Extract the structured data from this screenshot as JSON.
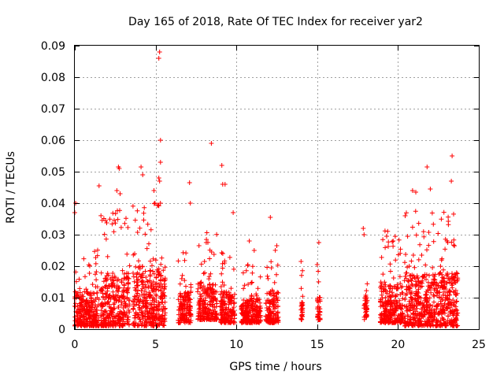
{
  "chart_data": {
    "type": "scatter",
    "title": "Day 165 of 2018, Rate Of TEC Index for receiver yar2",
    "xlabel": "GPS time / hours",
    "ylabel": "ROTI / TECUs",
    "xlim": [
      0,
      25
    ],
    "ylim": [
      0,
      0.09
    ],
    "x_ticks": [
      0,
      5,
      10,
      15,
      20,
      25
    ],
    "x_tick_labels": [
      "0",
      "5",
      "10",
      "15",
      "20",
      "25"
    ],
    "y_ticks": [
      0,
      0.01,
      0.02,
      0.03,
      0.04,
      0.05,
      0.06,
      0.07,
      0.08,
      0.09
    ],
    "y_tick_labels": [
      "0",
      "0.01",
      "0.02",
      "0.03",
      "0.04",
      "0.05",
      "0.06",
      "0.07",
      "0.08",
      "0.09"
    ],
    "grid": true,
    "marker": "plus",
    "series_color": "#ff0000",
    "dense_segments": [
      {
        "x_start": 0.0,
        "x_end": 1.5,
        "y_low": 0.001,
        "y_high": 0.012
      },
      {
        "x_start": 1.6,
        "x_end": 3.4,
        "y_low": 0.001,
        "y_high": 0.018
      },
      {
        "x_start": 3.6,
        "x_end": 5.6,
        "y_low": 0.001,
        "y_high": 0.02
      },
      {
        "x_start": 6.4,
        "x_end": 7.2,
        "y_low": 0.002,
        "y_high": 0.012
      },
      {
        "x_start": 7.6,
        "x_end": 8.8,
        "y_low": 0.003,
        "y_high": 0.015
      },
      {
        "x_start": 9.0,
        "x_end": 9.9,
        "y_low": 0.002,
        "y_high": 0.012
      },
      {
        "x_start": 10.3,
        "x_end": 11.5,
        "y_low": 0.002,
        "y_high": 0.01
      },
      {
        "x_start": 11.8,
        "x_end": 12.6,
        "y_low": 0.002,
        "y_high": 0.012
      },
      {
        "x_start": 14.0,
        "x_end": 14.1,
        "y_low": 0.003,
        "y_high": 0.01
      },
      {
        "x_start": 15.0,
        "x_end": 15.2,
        "y_low": 0.003,
        "y_high": 0.01
      },
      {
        "x_start": 17.9,
        "x_end": 18.1,
        "y_low": 0.003,
        "y_high": 0.01
      },
      {
        "x_start": 18.9,
        "x_end": 20.3,
        "y_low": 0.002,
        "y_high": 0.015
      },
      {
        "x_start": 20.4,
        "x_end": 23.7,
        "y_low": 0.001,
        "y_high": 0.018
      }
    ],
    "notable_points": [
      {
        "x": 5.25,
        "y": 0.088
      },
      {
        "x": 5.2,
        "y": 0.086
      },
      {
        "x": 5.3,
        "y": 0.06
      },
      {
        "x": 5.3,
        "y": 0.053
      },
      {
        "x": 5.2,
        "y": 0.048
      },
      {
        "x": 5.25,
        "y": 0.047
      },
      {
        "x": 8.45,
        "y": 0.059
      },
      {
        "x": 9.1,
        "y": 0.052
      },
      {
        "x": 9.15,
        "y": 0.046
      },
      {
        "x": 9.3,
        "y": 0.046
      },
      {
        "x": 7.1,
        "y": 0.0465
      },
      {
        "x": 7.15,
        "y": 0.04
      },
      {
        "x": 1.5,
        "y": 0.0455
      },
      {
        "x": 2.7,
        "y": 0.0515
      },
      {
        "x": 2.75,
        "y": 0.051
      },
      {
        "x": 2.6,
        "y": 0.044
      },
      {
        "x": 2.8,
        "y": 0.043
      },
      {
        "x": 4.1,
        "y": 0.0515
      },
      {
        "x": 4.2,
        "y": 0.049
      },
      {
        "x": 4.9,
        "y": 0.044
      },
      {
        "x": 0.05,
        "y": 0.04
      },
      {
        "x": 0.0,
        "y": 0.037
      },
      {
        "x": 23.35,
        "y": 0.055
      },
      {
        "x": 23.3,
        "y": 0.047
      },
      {
        "x": 21.8,
        "y": 0.0515
      },
      {
        "x": 22.0,
        "y": 0.0445
      },
      {
        "x": 20.9,
        "y": 0.044
      },
      {
        "x": 21.1,
        "y": 0.0435
      },
      {
        "x": 9.8,
        "y": 0.037
      },
      {
        "x": 12.1,
        "y": 0.0355
      },
      {
        "x": 15.1,
        "y": 0.0275
      },
      {
        "x": 17.85,
        "y": 0.032
      },
      {
        "x": 17.9,
        "y": 0.03
      },
      {
        "x": 19.3,
        "y": 0.0295
      },
      {
        "x": 19.7,
        "y": 0.028
      },
      {
        "x": 14.0,
        "y": 0.0215
      },
      {
        "x": 15.0,
        "y": 0.0205
      },
      {
        "x": 10.8,
        "y": 0.028
      },
      {
        "x": 11.1,
        "y": 0.025
      },
      {
        "x": 12.5,
        "y": 0.0265
      }
    ]
  }
}
